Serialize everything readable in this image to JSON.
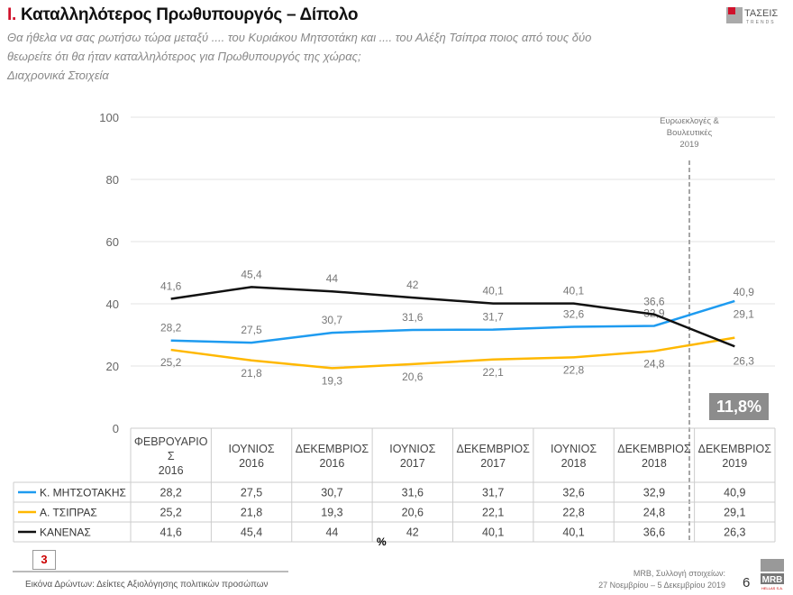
{
  "header": {
    "title_num": "I.",
    "title": "Καταλληλότερος Πρωθυπουργός – Δίπολο",
    "subtitle_1": "Θα ήθελα να σας ρωτήσω τώρα μεταξύ .... του Κυριάκου Μητσοτάκη και .... του  Αλέξη Τσίπρα ποιος από τους δύο",
    "subtitle_2": "θεωρείτε ότι θα ήταν καταλληλότερος για Πρωθυπουργός της χώρας;",
    "subtitle_3": "Διαχρονικά Στοιχεία",
    "logo_text": "ΤΑΣΕΙΣ",
    "logo_sub": "TRENDS"
  },
  "chart_data": {
    "type": "line",
    "categories": [
      "ΦΕΒΡΟΥΑΡΙΟ Σ 2016",
      "ΙΟΥΝΙΟΣ 2016",
      "ΔΕΚΕΜΒΡΙΟΣ 2016",
      "ΙΟΥΝΙΟΣ 2017",
      "ΔΕΚΕΜΒΡΙΟΣ 2017",
      "ΙΟΥΝΙΟΣ 2018",
      "ΔΕΚΕΜΒΡΙΟΣ 2018",
      "ΔΕΚΕΜΒΡΙΟΣ 2019"
    ],
    "category_lines": [
      [
        "ΦΕΒΡΟΥΑΡΙΟ",
        "Σ",
        "2016"
      ],
      [
        "ΙΟΥΝΙΟΣ",
        "2016"
      ],
      [
        "ΔΕΚΕΜΒΡΙΟΣ",
        "2016"
      ],
      [
        "ΙΟΥΝΙΟΣ",
        "2017"
      ],
      [
        "ΔΕΚΕΜΒΡΙΟΣ",
        "2017"
      ],
      [
        "ΙΟΥΝΙΟΣ",
        "2018"
      ],
      [
        "ΔΕΚΕΜΒΡΙΟΣ",
        "2018"
      ],
      [
        "ΔΕΚΕΜΒΡΙΟΣ",
        "2019"
      ]
    ],
    "series": [
      {
        "name": "Κ. ΜΗΤΣΟΤΑΚΗΣ",
        "color": "#1e9bf0",
        "values": [
          28.2,
          27.5,
          30.7,
          31.6,
          31.7,
          32.6,
          32.9,
          40.9
        ],
        "labels": [
          "28,2",
          "27,5",
          "30,7",
          "31,6",
          "31,7",
          "32,6",
          "32,9",
          "40,9"
        ],
        "table": [
          "28,2",
          "27,5",
          "30,7",
          "31,6",
          "31,7",
          "32,6",
          "32,9",
          "40,9"
        ]
      },
      {
        "name": "Α. ΤΣΙΠΡΑΣ",
        "color": "#ffb800",
        "values": [
          25.2,
          21.8,
          19.3,
          20.6,
          22.1,
          22.8,
          24.8,
          29.1
        ],
        "labels": [
          "25,2",
          "21,8",
          "19,3",
          "20,6",
          "22,1",
          "22,8",
          "24,8",
          "29,1"
        ],
        "table": [
          "25,2",
          "21,8",
          "19,3",
          "20,6",
          "22,1",
          "22,8",
          "24,8",
          "29,1"
        ]
      },
      {
        "name": "ΚΑΝΕΝΑΣ",
        "color": "#111111",
        "values": [
          41.6,
          45.4,
          44,
          42,
          40.1,
          40.1,
          36.6,
          26.3
        ],
        "labels": [
          "41,6",
          "45,4",
          "44",
          "42",
          "40,1",
          "40,1",
          "36,6",
          "26,3"
        ],
        "table": [
          "41,6",
          "45,4",
          "44",
          "42",
          "40,1",
          "40,1",
          "36,6",
          "26,3"
        ]
      }
    ],
    "yticks": [
      "0",
      "20",
      "40",
      "60",
      "80",
      "100"
    ],
    "ylim": [
      0,
      100
    ],
    "grid": true,
    "legend": "table-left",
    "annotation": [
      "Ευρωεκλογές &",
      "Βουλευτικές",
      "2019"
    ],
    "badge": "11,8%",
    "unit": "%"
  },
  "footer": {
    "page_box": "3",
    "left": "Εικόνα Δρώντων: Δείκτες Αξιολόγησης πολιτικών προσώπων",
    "right_1": "MRB, Συλλογή στοιχείων:",
    "right_2": "27 Νοεμβρίου – 5 Δεκεμβρίου 2019",
    "page": "6",
    "mrb": "MRB",
    "mrb_sub": "HELLAS S.A."
  }
}
